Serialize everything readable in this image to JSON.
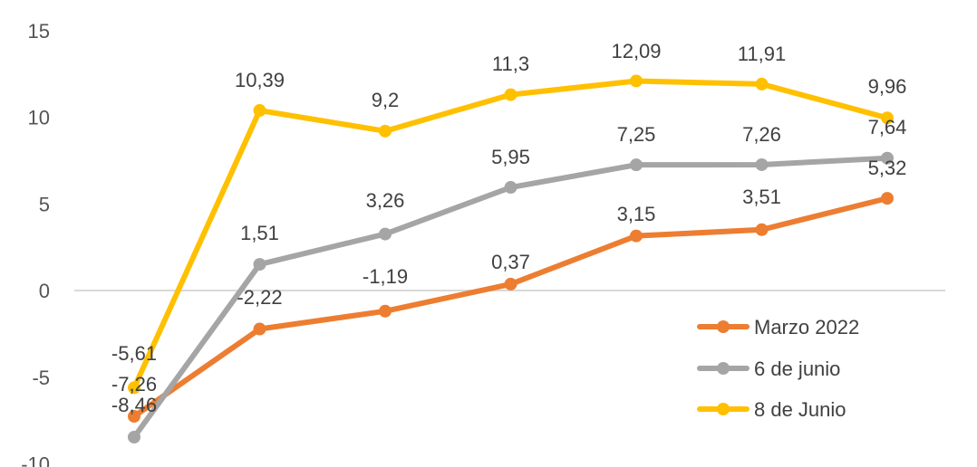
{
  "chart_data": {
    "type": "line",
    "categories": [
      "",
      "",
      "",
      "",
      "",
      "",
      ""
    ],
    "ylim": [
      -10,
      15
    ],
    "yticks": [
      "15",
      "10",
      "5",
      "0",
      "-5",
      "-10"
    ],
    "ytick_values": [
      15,
      10,
      5,
      0,
      -5,
      -10
    ],
    "legend_position": "bottom-right",
    "series": [
      {
        "name": "Marzo 2022",
        "color": "#ED7D31",
        "values": [
          -7.26,
          -2.22,
          -1.19,
          0.37,
          3.15,
          3.51,
          5.32
        ],
        "labels": [
          "-7,26",
          "-2,22",
          "-1,19",
          "0,37",
          "3,15",
          "3,51",
          "5,32"
        ]
      },
      {
        "name": "6 de junio",
        "color": "#A5A5A5",
        "values": [
          -8.46,
          1.51,
          3.26,
          5.95,
          7.25,
          7.26,
          7.64
        ],
        "labels": [
          "-8,46",
          "1,51",
          "3,26",
          "5,95",
          "7,25",
          "7,26",
          "7,64"
        ]
      },
      {
        "name": "8 de Junio",
        "color": "#FFC000",
        "values": [
          -5.61,
          10.39,
          9.2,
          11.3,
          12.09,
          11.91,
          9.96
        ],
        "labels": [
          "-5,61",
          "10,39",
          "9,2",
          "11,3",
          "12,09",
          "11,91",
          "9,96"
        ]
      }
    ]
  }
}
